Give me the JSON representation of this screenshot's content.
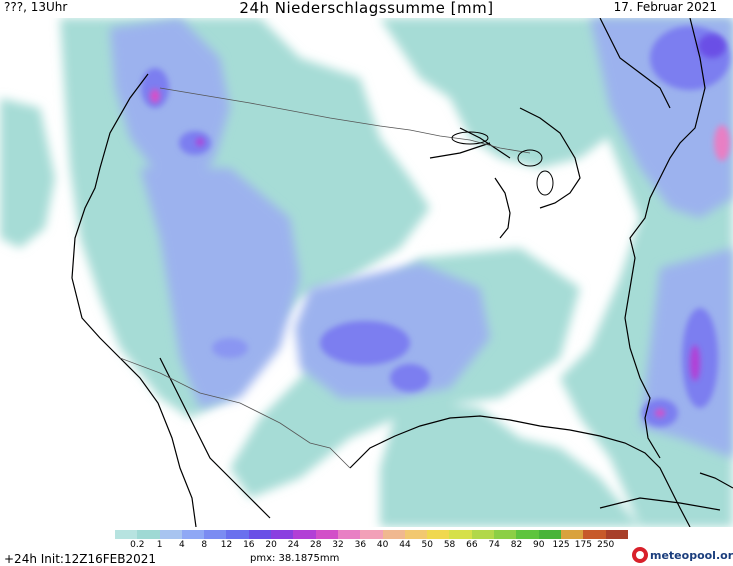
{
  "header": {
    "left_label": "???, 13Uhr",
    "title": "24h Niederschlagssumme [mm]",
    "date": "17. Februar 2021"
  },
  "legend": {
    "ticks": [
      "0.2",
      "1",
      "4",
      "8",
      "12",
      "16",
      "20",
      "24",
      "28",
      "32",
      "36",
      "40",
      "44",
      "50",
      "58",
      "66",
      "74",
      "82",
      "90",
      "125",
      "175",
      "250"
    ],
    "colors": [
      "#b7e3e0",
      "#9fd9d4",
      "#a8c4f0",
      "#8fa8f5",
      "#7b8cf2",
      "#6a70ee",
      "#6a4fe6",
      "#8a3fe0",
      "#b23fd6",
      "#d24fc8",
      "#e87fc4",
      "#f2a0b8",
      "#f0b890",
      "#f2c870",
      "#f0d850",
      "#d6e04a",
      "#b2d84a",
      "#8ccf45",
      "#5ec43e",
      "#48b43a",
      "#d9a23e",
      "#c75a2a",
      "#a8402a"
    ]
  },
  "footer": {
    "init": "+24h Init:12Z16FEB2021",
    "pmx": "pmx: 38.1875mm",
    "logo": "meteopool.org"
  },
  "colors": {
    "light": "#a6dcd6",
    "mid": "#9cb2ee",
    "strong": "#7b7ef0",
    "violet": "#6a4fe6",
    "magenta": "#d84fc8"
  }
}
